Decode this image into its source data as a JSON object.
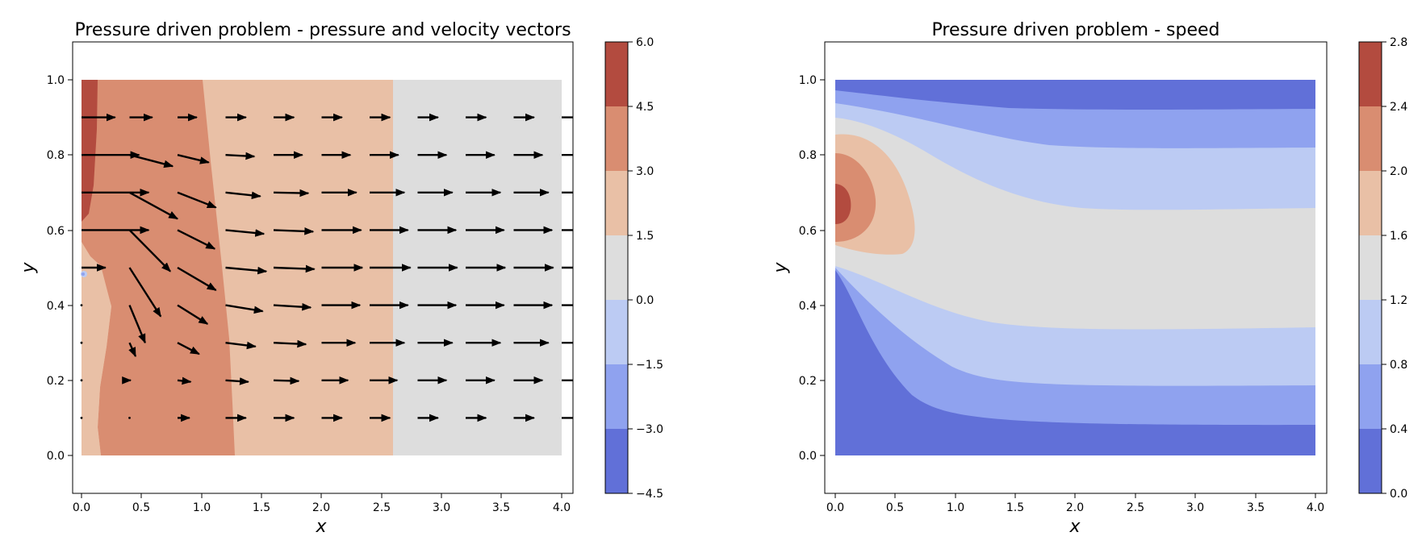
{
  "chart_data": [
    {
      "type": "contour",
      "title": "Pressure driven problem - pressure and velocity vectors",
      "xlabel": "x",
      "ylabel": "y",
      "xlim": [
        -0.1,
        4.1
      ],
      "ylim": [
        -0.1,
        1.1
      ],
      "xticks": [
        "0.0",
        "0.5",
        "1.0",
        "1.5",
        "2.0",
        "2.5",
        "3.0",
        "3.5",
        "4.0"
      ],
      "yticks": [
        "0.0",
        "0.2",
        "0.4",
        "0.6",
        "0.8",
        "1.0"
      ],
      "colorbar": {
        "levels": [
          -4.5,
          -3.0,
          -1.5,
          0.0,
          1.5,
          3.0,
          4.5,
          6.0
        ],
        "labels": [
          "−4.5",
          "−3.0",
          "−1.5",
          "0.0",
          "1.5",
          "3.0",
          "4.5",
          "6.0"
        ],
        "colors": [
          "#6170d8",
          "#8fa2ef",
          "#bccbf3",
          "#dddddd",
          "#e9c0a6",
          "#d98d71",
          "#b34b3f"
        ]
      },
      "regions": [
        {
          "level": "4.5 to 6.0",
          "color": "#b34b3f",
          "x_range": [
            0.0,
            0.13
          ],
          "y_range": [
            0.65,
            1.0
          ]
        },
        {
          "level": "3.0 to 4.5",
          "color": "#d98d71",
          "x_range": [
            0.0,
            1.27
          ],
          "y_range": [
            0.0,
            1.0
          ]
        },
        {
          "level": "1.5 to 3.0",
          "color": "#e9c0a6",
          "x_range": [
            1.0,
            2.6
          ],
          "y_range": [
            0.0,
            1.0
          ]
        },
        {
          "level": "0.0 to 1.5",
          "color": "#dddddd",
          "x_range": [
            2.6,
            4.0
          ],
          "y_range": [
            0.0,
            1.0
          ]
        }
      ],
      "quiver": {
        "x": [
          0.0,
          0.4,
          0.8,
          1.2,
          1.6,
          2.0,
          2.4,
          2.8,
          3.2,
          3.6,
          4.0
        ],
        "y": [
          0.1,
          0.2,
          0.3,
          0.4,
          0.5,
          0.6,
          0.7,
          0.8,
          0.9
        ],
        "u": [
          [
            0.0,
            0.0,
            0.5,
            0.85,
            0.85,
            0.85,
            0.85,
            0.85,
            0.85,
            0.85,
            0.85
          ],
          [
            0.0,
            0.05,
            0.55,
            0.95,
            1.05,
            1.1,
            1.15,
            1.2,
            1.2,
            1.2,
            1.2
          ],
          [
            0.0,
            0.25,
            0.9,
            1.25,
            1.35,
            1.4,
            1.45,
            1.45,
            1.45,
            1.45,
            1.45
          ],
          [
            0.0,
            0.65,
            1.25,
            1.55,
            1.55,
            1.6,
            1.6,
            1.6,
            1.6,
            1.6,
            1.6
          ],
          [
            1.0,
            1.3,
            1.6,
            1.7,
            1.7,
            1.7,
            1.7,
            1.65,
            1.65,
            1.65,
            1.65
          ],
          [
            2.8,
            1.7,
            1.55,
            1.6,
            1.65,
            1.65,
            1.6,
            1.6,
            1.6,
            1.6,
            1.6
          ],
          [
            2.8,
            2.0,
            1.6,
            1.45,
            1.45,
            1.45,
            1.45,
            1.45,
            1.45,
            1.45,
            1.45
          ],
          [
            2.4,
            1.8,
            1.3,
            1.2,
            1.2,
            1.2,
            1.2,
            1.2,
            1.2,
            1.2,
            1.2
          ],
          [
            1.4,
            0.95,
            0.8,
            0.85,
            0.85,
            0.85,
            0.85,
            0.85,
            0.85,
            0.85,
            0.85
          ]
        ],
        "v": [
          [
            0.0,
            0.0,
            0.0,
            0.0,
            0.0,
            0.0,
            0.0,
            0.0,
            0.0,
            0.0,
            0.0
          ],
          [
            0.0,
            0.0,
            -0.02,
            -0.02,
            -0.01,
            0.0,
            0.0,
            0.0,
            0.0,
            0.0,
            0.0
          ],
          [
            0.0,
            -0.18,
            -0.15,
            -0.05,
            -0.02,
            0.0,
            0.0,
            0.0,
            0.0,
            0.0,
            0.0
          ],
          [
            0.0,
            -0.5,
            -0.25,
            -0.08,
            -0.03,
            0.0,
            0.0,
            0.0,
            0.0,
            0.0,
            0.0
          ],
          [
            0.0,
            -0.65,
            -0.3,
            -0.05,
            -0.02,
            0.0,
            0.0,
            0.0,
            0.0,
            0.0,
            0.0
          ],
          [
            0.0,
            -0.55,
            -0.25,
            -0.05,
            -0.02,
            0.0,
            0.0,
            0.0,
            0.0,
            0.0,
            0.0
          ],
          [
            0.0,
            -0.35,
            -0.2,
            -0.05,
            -0.01,
            0.0,
            0.0,
            0.0,
            0.0,
            0.0,
            0.0
          ],
          [
            0.0,
            -0.15,
            -0.1,
            -0.02,
            0.0,
            0.0,
            0.0,
            0.0,
            0.0,
            0.0,
            0.0
          ],
          [
            0.0,
            0.0,
            0.0,
            0.0,
            0.0,
            0.0,
            0.0,
            0.0,
            0.0,
            0.0,
            0.0
          ]
        ]
      }
    },
    {
      "type": "contour",
      "title": "Pressure driven problem - speed",
      "xlabel": "x",
      "ylabel": "y",
      "xlim": [
        -0.1,
        4.1
      ],
      "ylim": [
        -0.1,
        1.1
      ],
      "xticks": [
        "0.0",
        "0.5",
        "1.0",
        "1.5",
        "2.0",
        "2.5",
        "3.0",
        "3.5",
        "4.0"
      ],
      "yticks": [
        "0.0",
        "0.2",
        "0.4",
        "0.6",
        "0.8",
        "1.0"
      ],
      "colorbar": {
        "levels": [
          0.0,
          0.4,
          0.8,
          1.2,
          1.6,
          2.0,
          2.4,
          2.8
        ],
        "labels": [
          "0.0",
          "0.4",
          "0.8",
          "1.2",
          "1.6",
          "2.0",
          "2.4",
          "2.8"
        ],
        "colors": [
          "#6170d8",
          "#8fa2ef",
          "#bccbf3",
          "#dddddd",
          "#e9c0a6",
          "#d98d71",
          "#b34b3f"
        ]
      },
      "bands": {
        "lower_boundaries": [
          {
            "level": 0.4,
            "x": [
              0.0,
              0.3,
              0.6,
              1.0,
              1.5,
              4.0
            ],
            "y": [
              0.49,
              0.3,
              0.16,
              0.09,
              0.08,
              0.08
            ]
          },
          {
            "level": 0.8,
            "x": [
              0.0,
              0.3,
              0.6,
              1.0,
              1.5,
              4.0
            ],
            "y": [
              0.5,
              0.4,
              0.3,
              0.21,
              0.18,
              0.18
            ]
          },
          {
            "level": 1.2,
            "x": [
              0.0,
              0.3,
              0.6,
              1.0,
              1.5,
              4.0
            ],
            "y": [
              0.51,
              0.46,
              0.41,
              0.36,
              0.34,
              0.34
            ]
          }
        ],
        "upper_boundaries": [
          {
            "level": 1.2,
            "x": [
              0.0,
              0.5,
              1.0,
              1.5,
              4.0
            ],
            "y": [
              0.9,
              0.82,
              0.71,
              0.66,
              0.66
            ]
          },
          {
            "level": 0.8,
            "x": [
              0.0,
              0.5,
              1.0,
              1.5,
              4.0
            ],
            "y": [
              0.94,
              0.9,
              0.85,
              0.82,
              0.82
            ]
          },
          {
            "level": 0.4,
            "x": [
              0.0,
              0.5,
              1.0,
              1.5,
              4.0
            ],
            "y": [
              0.97,
              0.95,
              0.93,
              0.92,
              0.92
            ]
          }
        ],
        "core": [
          {
            "level": 1.6,
            "center": [
              0.0,
              0.68
            ],
            "x_extent": 0.63,
            "y_range": [
              0.54,
              0.85
            ]
          },
          {
            "level": 2.0,
            "center": [
              0.0,
              0.68
            ],
            "x_extent": 0.33,
            "y_range": [
              0.58,
              0.8
            ]
          },
          {
            "level": 2.4,
            "center": [
              0.0,
              0.68
            ],
            "x_extent": 0.1,
            "y_range": [
              0.62,
              0.72
            ]
          }
        ]
      }
    }
  ]
}
